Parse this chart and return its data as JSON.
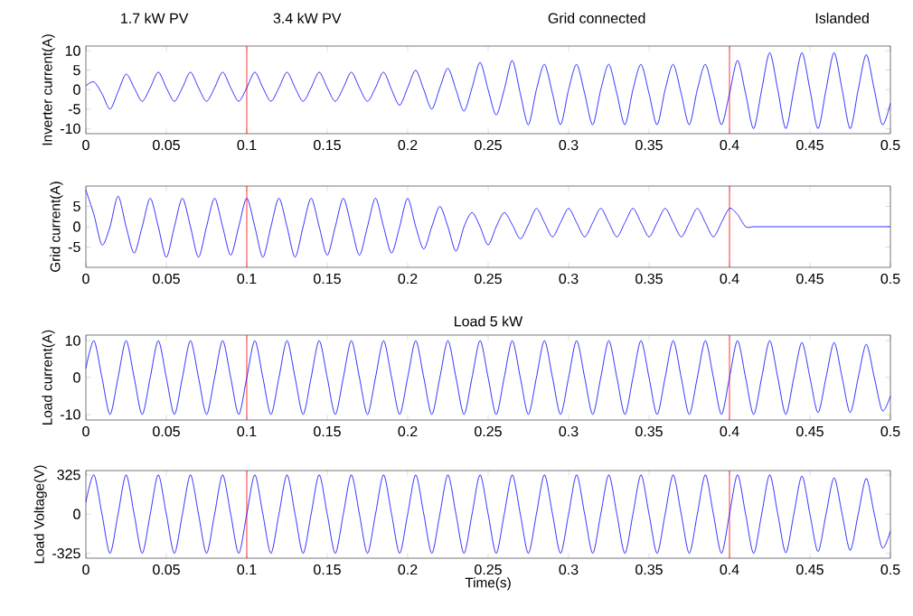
{
  "chart_data": [
    {
      "type": "line",
      "ylabel": "Inverter current(A)",
      "annotations": [
        "1.7 kW PV",
        "3.4 kW PV",
        "Grid connected",
        "Islanded"
      ],
      "x": [
        0,
        0.005,
        0.01,
        0.015,
        0.02,
        0.025,
        0.03,
        0.035,
        0.04,
        0.045,
        0.05,
        0.055,
        0.06,
        0.065,
        0.07,
        0.075,
        0.08,
        0.085,
        0.09,
        0.095,
        0.1,
        0.105,
        0.11,
        0.115,
        0.12,
        0.125,
        0.13,
        0.135,
        0.14,
        0.145,
        0.15,
        0.155,
        0.16,
        0.165,
        0.17,
        0.175,
        0.18,
        0.185,
        0.19,
        0.195,
        0.2,
        0.205,
        0.21,
        0.215,
        0.22,
        0.225,
        0.23,
        0.235,
        0.24,
        0.245,
        0.25,
        0.255,
        0.26,
        0.265,
        0.27,
        0.275,
        0.28,
        0.285,
        0.29,
        0.295,
        0.3,
        0.305,
        0.31,
        0.315,
        0.32,
        0.325,
        0.33,
        0.335,
        0.34,
        0.345,
        0.35,
        0.355,
        0.36,
        0.365,
        0.37,
        0.375,
        0.38,
        0.385,
        0.39,
        0.395,
        0.4,
        0.405,
        0.41,
        0.415,
        0.42,
        0.425,
        0.43,
        0.435,
        0.44,
        0.445,
        0.45,
        0.455,
        0.46,
        0.465,
        0.47,
        0.475,
        0.48,
        0.485,
        0.49,
        0.495,
        0.5
      ],
      "series": [
        {
          "color": "#0000ff",
          "values": [
            1,
            2,
            -1,
            -5,
            -0.5,
            4,
            0.5,
            -3,
            0.5,
            4.5,
            0.5,
            -3,
            0.5,
            4.5,
            0.5,
            -3,
            0.5,
            4.5,
            0.5,
            -3,
            0.5,
            4.5,
            0.5,
            -3,
            0.5,
            4.5,
            0.5,
            -3,
            0.5,
            4.5,
            0.5,
            -3,
            0.5,
            4.5,
            0.5,
            -3,
            0.5,
            4.5,
            0,
            -4,
            0.5,
            5,
            0,
            -5,
            0.5,
            5.5,
            0,
            -5.5,
            0.5,
            7,
            0,
            -6.5,
            0,
            7.5,
            -1,
            -9,
            0,
            6.5,
            -1,
            -9,
            0,
            6.5,
            -1,
            -9,
            0,
            6.5,
            -1,
            -9,
            0,
            6.5,
            -1,
            -9,
            0,
            6.5,
            -1,
            -9,
            0,
            6.5,
            -1,
            -9,
            -1,
            7.5,
            -1,
            -10,
            0,
            9.5,
            0,
            -10,
            0,
            9.5,
            0,
            -10,
            0,
            9.5,
            0,
            -10,
            0,
            9,
            0,
            -9,
            -3.5
          ]
        }
      ],
      "xlim": [
        0,
        0.5
      ],
      "ylim": [
        -11.3,
        11.2
      ],
      "xticks": [
        0,
        0.05,
        0.1,
        0.15,
        0.2,
        0.25,
        0.3,
        0.35,
        0.4,
        0.45,
        0.5
      ],
      "yticks": [
        -10,
        -5,
        0,
        5,
        10
      ],
      "ref_lines": [
        {
          "axis": "x",
          "value": 0.1,
          "color": "#ff0000"
        },
        {
          "axis": "x",
          "value": 0.4,
          "color": "#ff0000"
        }
      ]
    },
    {
      "type": "line",
      "ylabel": "Grid current(A)",
      "x": [
        0,
        0.005,
        0.01,
        0.015,
        0.02,
        0.025,
        0.03,
        0.035,
        0.04,
        0.045,
        0.05,
        0.055,
        0.06,
        0.065,
        0.07,
        0.075,
        0.08,
        0.085,
        0.09,
        0.095,
        0.1,
        0.105,
        0.11,
        0.115,
        0.12,
        0.125,
        0.13,
        0.135,
        0.14,
        0.145,
        0.15,
        0.155,
        0.16,
        0.165,
        0.17,
        0.175,
        0.18,
        0.185,
        0.19,
        0.195,
        0.2,
        0.205,
        0.21,
        0.215,
        0.22,
        0.225,
        0.23,
        0.235,
        0.24,
        0.245,
        0.25,
        0.255,
        0.26,
        0.265,
        0.27,
        0.275,
        0.28,
        0.285,
        0.29,
        0.295,
        0.3,
        0.305,
        0.31,
        0.315,
        0.32,
        0.325,
        0.33,
        0.335,
        0.34,
        0.345,
        0.35,
        0.355,
        0.36,
        0.365,
        0.37,
        0.375,
        0.38,
        0.385,
        0.39,
        0.395,
        0.4,
        0.405,
        0.41,
        0.415,
        0.42,
        0.425,
        0.43,
        0.435,
        0.44,
        0.445,
        0.45,
        0.455,
        0.46,
        0.465,
        0.47,
        0.475,
        0.48,
        0.485,
        0.49,
        0.495,
        0.5
      ],
      "series": [
        {
          "color": "#0000ff",
          "values": [
            9,
            3,
            -4.5,
            0,
            7.5,
            0,
            -6.5,
            0,
            7,
            0,
            -7.5,
            0,
            7,
            0,
            -7.5,
            0,
            7,
            0,
            -7,
            0,
            7,
            0,
            -7.5,
            0,
            7,
            0,
            -7.5,
            0,
            7,
            0,
            -7,
            0,
            7,
            0,
            -7,
            0,
            7,
            0,
            -6.5,
            0,
            7,
            0,
            -5.5,
            0,
            5,
            0,
            -6,
            0,
            3.5,
            0,
            -4.5,
            0,
            3.5,
            0.5,
            -3,
            0.5,
            4.5,
            1,
            -2.5,
            1,
            4.5,
            1,
            -2.5,
            1,
            4.5,
            1,
            -2.5,
            1,
            4.5,
            1,
            -2.5,
            1,
            4.5,
            1,
            -2.5,
            1,
            4.5,
            1,
            -2.5,
            1,
            4.5,
            3,
            0,
            0,
            0,
            0,
            0,
            0,
            0,
            0,
            0,
            0,
            0,
            0,
            0,
            0,
            0,
            0,
            0,
            0,
            0
          ]
        }
      ],
      "xlim": [
        0,
        0.5
      ],
      "ylim": [
        -10,
        10
      ],
      "xticks": [
        0,
        0.05,
        0.1,
        0.15,
        0.2,
        0.25,
        0.3,
        0.35,
        0.4,
        0.45,
        0.5
      ],
      "yticks": [
        -5,
        0,
        5
      ],
      "ref_lines": [
        {
          "axis": "x",
          "value": 0.1,
          "color": "#ff0000"
        },
        {
          "axis": "x",
          "value": 0.4,
          "color": "#ff0000"
        }
      ]
    },
    {
      "type": "line",
      "title": "Load 5 kW",
      "ylabel": "Load current(A)",
      "x": [
        0,
        0.005,
        0.01,
        0.015,
        0.02,
        0.025,
        0.03,
        0.035,
        0.04,
        0.045,
        0.05,
        0.055,
        0.06,
        0.065,
        0.07,
        0.075,
        0.08,
        0.085,
        0.09,
        0.095,
        0.1,
        0.105,
        0.11,
        0.115,
        0.12,
        0.125,
        0.13,
        0.135,
        0.14,
        0.145,
        0.15,
        0.155,
        0.16,
        0.165,
        0.17,
        0.175,
        0.18,
        0.185,
        0.19,
        0.195,
        0.2,
        0.205,
        0.21,
        0.215,
        0.22,
        0.225,
        0.23,
        0.235,
        0.24,
        0.245,
        0.25,
        0.255,
        0.26,
        0.265,
        0.27,
        0.275,
        0.28,
        0.285,
        0.29,
        0.295,
        0.3,
        0.305,
        0.31,
        0.315,
        0.32,
        0.325,
        0.33,
        0.335,
        0.34,
        0.345,
        0.35,
        0.355,
        0.36,
        0.365,
        0.37,
        0.375,
        0.38,
        0.385,
        0.39,
        0.395,
        0.4,
        0.405,
        0.41,
        0.415,
        0.42,
        0.425,
        0.43,
        0.435,
        0.44,
        0.445,
        0.45,
        0.455,
        0.46,
        0.465,
        0.47,
        0.475,
        0.48,
        0.485,
        0.49,
        0.495,
        0.5
      ],
      "series": [
        {
          "color": "#0000ff",
          "values": [
            2.5,
            10,
            0,
            -10,
            0,
            10,
            0,
            -10,
            0,
            10,
            0,
            -10,
            0,
            10,
            0,
            -10,
            0,
            10,
            0,
            -10,
            0,
            10,
            0,
            -10,
            0,
            10,
            0,
            -10,
            0,
            10,
            0,
            -10,
            0,
            10,
            0,
            -10,
            0,
            10,
            0,
            -10,
            0,
            10,
            0,
            -10,
            0,
            10,
            0,
            -10,
            0,
            10,
            0,
            -10,
            0,
            10,
            0,
            -10,
            0,
            10,
            0,
            -10,
            0,
            10,
            0,
            -10,
            0,
            10,
            0,
            -10,
            0,
            10,
            0,
            -10,
            0,
            10,
            0,
            -10,
            0,
            10,
            0,
            -10,
            0,
            10,
            0,
            -10,
            0,
            10,
            0,
            -10,
            0,
            9.5,
            0,
            -9.5,
            0,
            9.5,
            0,
            -9.5,
            0,
            9,
            0,
            -9,
            -5
          ]
        }
      ],
      "xlim": [
        0,
        0.5
      ],
      "ylim": [
        -11.5,
        11.5
      ],
      "xticks": [
        0,
        0.05,
        0.1,
        0.15,
        0.2,
        0.25,
        0.3,
        0.35,
        0.4,
        0.45,
        0.5
      ],
      "yticks": [
        -10,
        0,
        10
      ],
      "ref_lines": [
        {
          "axis": "x",
          "value": 0.1,
          "color": "#ff0000"
        },
        {
          "axis": "x",
          "value": 0.4,
          "color": "#ff0000"
        }
      ]
    },
    {
      "type": "line",
      "xlabel": "Time(s)",
      "ylabel": "Load Voltage(V)",
      "x": [
        0,
        0.005,
        0.01,
        0.015,
        0.02,
        0.025,
        0.03,
        0.035,
        0.04,
        0.045,
        0.05,
        0.055,
        0.06,
        0.065,
        0.07,
        0.075,
        0.08,
        0.085,
        0.09,
        0.095,
        0.1,
        0.105,
        0.11,
        0.115,
        0.12,
        0.125,
        0.13,
        0.135,
        0.14,
        0.145,
        0.15,
        0.155,
        0.16,
        0.165,
        0.17,
        0.175,
        0.18,
        0.185,
        0.19,
        0.195,
        0.2,
        0.205,
        0.21,
        0.215,
        0.22,
        0.225,
        0.23,
        0.235,
        0.24,
        0.245,
        0.25,
        0.255,
        0.26,
        0.265,
        0.27,
        0.275,
        0.28,
        0.285,
        0.29,
        0.295,
        0.3,
        0.305,
        0.31,
        0.315,
        0.32,
        0.325,
        0.33,
        0.335,
        0.34,
        0.345,
        0.35,
        0.355,
        0.36,
        0.365,
        0.37,
        0.375,
        0.38,
        0.385,
        0.39,
        0.395,
        0.4,
        0.405,
        0.41,
        0.415,
        0.42,
        0.425,
        0.43,
        0.435,
        0.44,
        0.445,
        0.45,
        0.455,
        0.46,
        0.465,
        0.47,
        0.475,
        0.48,
        0.485,
        0.49,
        0.495,
        0.5
      ],
      "series": [
        {
          "color": "#0000ff",
          "values": [
            100,
            325,
            0,
            -325,
            0,
            325,
            0,
            -325,
            0,
            325,
            0,
            -325,
            0,
            325,
            0,
            -325,
            0,
            325,
            0,
            -325,
            0,
            325,
            0,
            -325,
            0,
            325,
            0,
            -325,
            0,
            325,
            0,
            -325,
            0,
            325,
            0,
            -325,
            0,
            325,
            0,
            -325,
            0,
            325,
            0,
            -325,
            0,
            325,
            0,
            -325,
            0,
            325,
            0,
            -325,
            0,
            325,
            0,
            -325,
            0,
            325,
            0,
            -325,
            0,
            325,
            0,
            -325,
            0,
            325,
            0,
            -325,
            0,
            325,
            0,
            -325,
            0,
            325,
            0,
            -325,
            0,
            325,
            0,
            -325,
            0,
            325,
            0,
            -325,
            0,
            325,
            0,
            -320,
            0,
            315,
            0,
            -310,
            0,
            300,
            0,
            -300,
            0,
            295,
            0,
            -280,
            -140
          ]
        }
      ],
      "xlim": [
        0,
        0.5
      ],
      "ylim": [
        -365,
        360
      ],
      "xticks": [
        0,
        0.05,
        0.1,
        0.15,
        0.2,
        0.25,
        0.3,
        0.35,
        0.4,
        0.45,
        0.5
      ],
      "yticks": [
        -325,
        0,
        325
      ],
      "ref_lines": [
        {
          "axis": "x",
          "value": 0.1,
          "color": "#ff0000"
        },
        {
          "axis": "x",
          "value": 0.4,
          "color": "#ff0000"
        }
      ]
    }
  ]
}
